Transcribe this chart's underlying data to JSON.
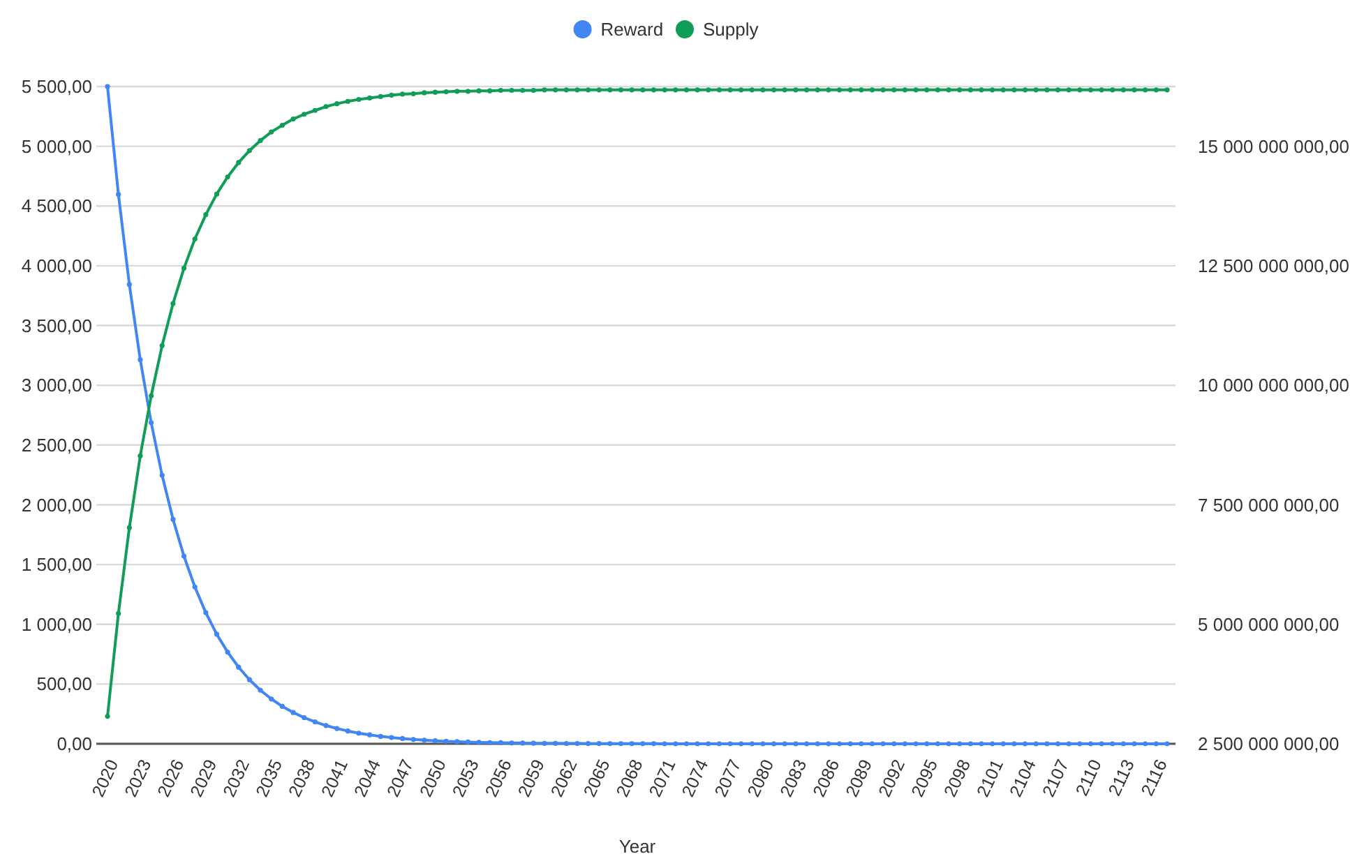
{
  "chart_data": {
    "type": "line",
    "xlabel": "Year",
    "legend": "top",
    "grid": "y",
    "marker": "circle",
    "line_style": "solid",
    "categories": [
      "2020",
      null,
      null,
      "2023",
      null,
      null,
      "2026",
      null,
      null,
      "2029",
      null,
      null,
      "2032",
      null,
      null,
      "2035",
      null,
      null,
      "2038",
      null,
      null,
      "2041",
      null,
      null,
      "2044",
      null,
      null,
      "2047",
      null,
      null,
      "2050",
      null,
      null,
      "2053",
      null,
      null,
      "2056",
      null,
      null,
      "2059",
      null,
      null,
      "2062",
      null,
      null,
      "2065",
      null,
      null,
      "2068",
      null,
      null,
      "2071",
      null,
      null,
      "2074",
      null,
      null,
      "2077",
      null,
      null,
      "2080",
      null,
      null,
      "2083",
      null,
      null,
      "2086",
      null,
      null,
      "2089",
      null,
      null,
      "2092",
      null,
      null,
      "2095",
      null,
      null,
      "2098",
      null,
      null,
      "2101",
      null,
      null,
      "2104",
      null,
      null,
      "2107",
      null,
      null,
      "2110",
      null,
      null,
      "2113",
      null,
      null,
      "2116",
      null
    ],
    "ylim": [
      0,
      5500
    ],
    "yticks": [
      {
        "value": 0,
        "label": "0,00"
      },
      {
        "value": 500,
        "label": "500,00"
      },
      {
        "value": 1000,
        "label": "1 000,00"
      },
      {
        "value": 1500,
        "label": "1 500,00"
      },
      {
        "value": 2000,
        "label": "2 000,00"
      },
      {
        "value": 2500,
        "label": "2 500,00"
      },
      {
        "value": 3000,
        "label": "3 000,00"
      },
      {
        "value": 3500,
        "label": "3 500,00"
      },
      {
        "value": 4000,
        "label": "4 000,00"
      },
      {
        "value": 4500,
        "label": "4 500,00"
      },
      {
        "value": 5000,
        "label": "5 000,00"
      },
      {
        "value": 5500,
        "label": "5 500,00"
      }
    ],
    "y2lim": [
      2500000000,
      16250000000
    ],
    "y2ticks": [
      {
        "value": 2500000000,
        "label": "2 500 000 000,00"
      },
      {
        "value": 5000000000,
        "label": "5 000 000 000,00"
      },
      {
        "value": 7500000000,
        "label": "7 500 000 000,00"
      },
      {
        "value": 10000000000,
        "label": "10 000 000 000,00"
      },
      {
        "value": 12500000000,
        "label": "12 500 000 000,00"
      },
      {
        "value": 15000000000,
        "label": "15 000 000 000,00"
      }
    ],
    "series": [
      {
        "name": "Reward",
        "color": "#4285f4",
        "axis": "y",
        "values": [
          5500,
          4598,
          3844,
          3214,
          2687,
          2246,
          1878,
          1570,
          1312,
          1097,
          917,
          767,
          641,
          536,
          448,
          375,
          313,
          262,
          219,
          183,
          153,
          128,
          107,
          89,
          75,
          62,
          52,
          44,
          36,
          30,
          25,
          21,
          18,
          15,
          12,
          10,
          9,
          7,
          6,
          5,
          4,
          4,
          3,
          3,
          2,
          2,
          1,
          1,
          1,
          1,
          1,
          0,
          0,
          0,
          0,
          0,
          0,
          0,
          0,
          0,
          0,
          0,
          0,
          0,
          0,
          0,
          0,
          0,
          0,
          0,
          0,
          0,
          0,
          0,
          0,
          0,
          0,
          0,
          0,
          0,
          0,
          0,
          0,
          0,
          0,
          0,
          0,
          0,
          0,
          0,
          0,
          0,
          0,
          0,
          0,
          0,
          0,
          0
        ]
      },
      {
        "name": "Supply",
        "color": "#0f9d58",
        "axis": "y2",
        "values": [
          3075000000,
          5225000000,
          7020000000,
          8525000000,
          9780000000,
          10830000000,
          11710000000,
          12450000000,
          13060000000,
          13570000000,
          14000000000,
          14360000000,
          14660000000,
          14910000000,
          15120000000,
          15300000000,
          15440000000,
          15570000000,
          15670000000,
          15750000000,
          15830000000,
          15890000000,
          15940000000,
          15980000000,
          16010000000,
          16040000000,
          16070000000,
          16090000000,
          16100000000,
          16120000000,
          16130000000,
          16140000000,
          16150000000,
          16150000000,
          16160000000,
          16160000000,
          16170000000,
          16170000000,
          16170000000,
          16170000000,
          16180000000,
          16180000000,
          16180000000,
          16180000000,
          16180000000,
          16180000000,
          16180000000,
          16180000000,
          16180000000,
          16180000000,
          16180000000,
          16180000000,
          16180000000,
          16180000000,
          16180000000,
          16180000000,
          16180000000,
          16180000000,
          16180000000,
          16180000000,
          16180000000,
          16180000000,
          16180000000,
          16180000000,
          16180000000,
          16180000000,
          16180000000,
          16180000000,
          16180000000,
          16180000000,
          16180000000,
          16180000000,
          16180000000,
          16180000000,
          16180000000,
          16180000000,
          16180000000,
          16180000000,
          16180000000,
          16180000000,
          16180000000,
          16180000000,
          16180000000,
          16180000000,
          16180000000,
          16180000000,
          16180000000,
          16180000000,
          16180000000,
          16180000000,
          16180000000,
          16180000000,
          16180000000,
          16180000000,
          16180000000,
          16180000000,
          16180000000,
          16180000000
        ]
      }
    ]
  }
}
